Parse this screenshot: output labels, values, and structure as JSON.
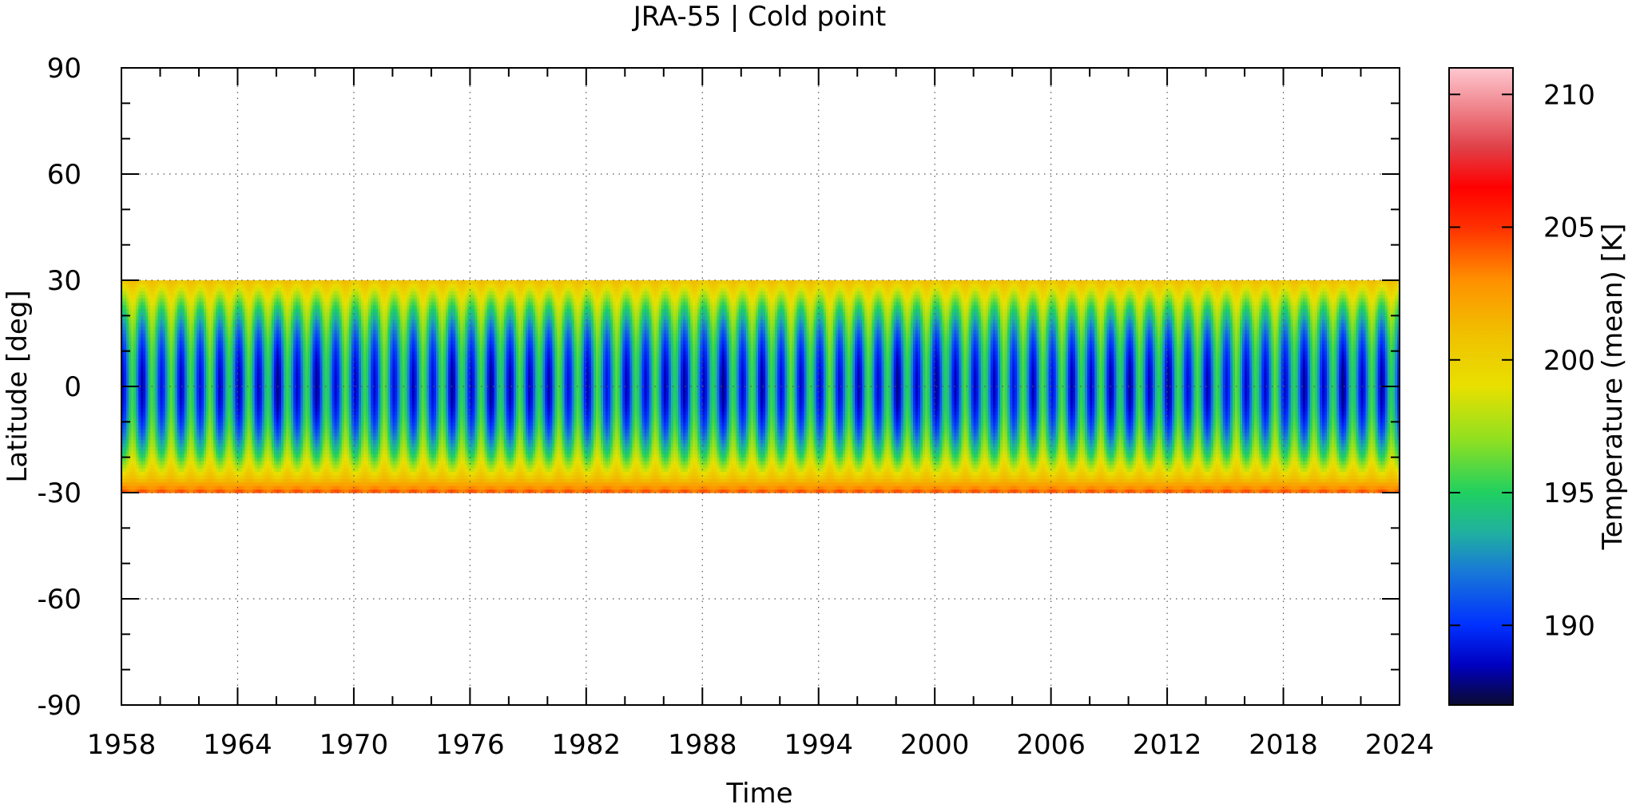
{
  "chart_data": {
    "type": "heatmap",
    "title": "JRA-55 | Cold point",
    "xlabel": "Time",
    "ylabel": "Latitude [deg]",
    "xlim": [
      1958,
      2024
    ],
    "ylim": [
      -90,
      90
    ],
    "x_ticks": [
      "1958",
      "1964",
      "1970",
      "1976",
      "1982",
      "1988",
      "1994",
      "2000",
      "2006",
      "2012",
      "2018",
      "2024"
    ],
    "y_ticks": [
      "90",
      "60",
      "30",
      "0",
      "-30",
      "-60",
      "-90"
    ],
    "data_lat_range": [
      -30,
      30
    ],
    "grid": true,
    "colorbar": {
      "label": "Temperature (mean) [K]",
      "range": [
        187,
        211
      ],
      "ticks": [
        "210",
        "205",
        "200",
        "195",
        "190"
      ],
      "stops": [
        {
          "value": 187,
          "color": "#0a0a30"
        },
        {
          "value": 188.5,
          "color": "#0000c0"
        },
        {
          "value": 190,
          "color": "#0030ff"
        },
        {
          "value": 192,
          "color": "#1878d8"
        },
        {
          "value": 193.5,
          "color": "#20b0a0"
        },
        {
          "value": 195,
          "color": "#20d060"
        },
        {
          "value": 197,
          "color": "#90e020"
        },
        {
          "value": 199,
          "color": "#e8e000"
        },
        {
          "value": 201,
          "color": "#f0c000"
        },
        {
          "value": 203,
          "color": "#ff9000"
        },
        {
          "value": 205,
          "color": "#ff3000"
        },
        {
          "value": 206.5,
          "color": "#ff0000"
        },
        {
          "value": 208,
          "color": "#e04048"
        },
        {
          "value": 211,
          "color": "#ffc8d0"
        }
      ]
    },
    "field_model": {
      "annual_cycle_peak_month": 0.08,
      "equator_min_K": 188.5,
      "equator_max_K": 195.5,
      "edge_north_K": 200.5,
      "edge_south_K": 203.5
    }
  }
}
